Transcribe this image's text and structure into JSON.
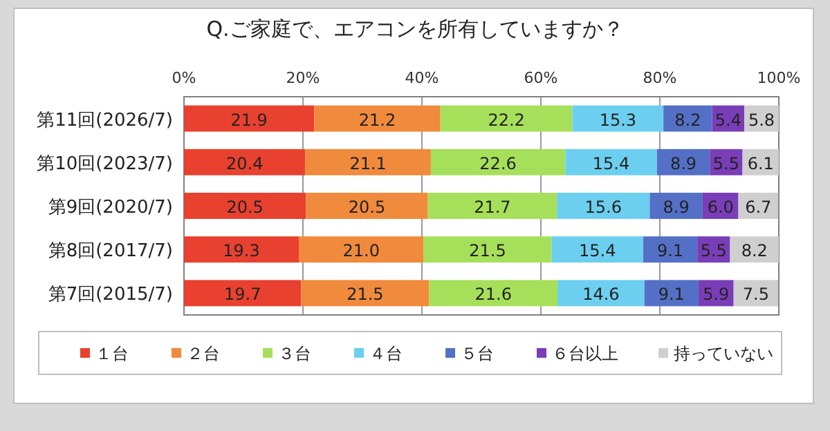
{
  "chart_data": {
    "type": "bar",
    "orientation": "horizontal",
    "stacked": true,
    "title": "Q.ご家庭で、エアコンを所有していますか？",
    "categories": [
      "第11回(2026/7)",
      "第10回(2023/7)",
      "第9回(2020/7)",
      "第8回(2017/7)",
      "第7回(2015/7)"
    ],
    "series": [
      {
        "name": "１台",
        "color": "#e8412f",
        "values": [
          21.9,
          20.4,
          20.5,
          19.3,
          19.7
        ],
        "value_labels": [
          "21.9",
          "20.4",
          "20.5",
          "19.3",
          "19.7"
        ]
      },
      {
        "name": "２台",
        "color": "#f08a3c",
        "values": [
          21.2,
          21.1,
          20.5,
          21.0,
          21.5
        ],
        "value_labels": [
          "21.2",
          "21.1",
          "20.5",
          "21.0",
          "21.5"
        ]
      },
      {
        "name": "３台",
        "color": "#a6e05a",
        "values": [
          22.2,
          22.6,
          21.7,
          21.5,
          21.6
        ],
        "value_labels": [
          "22.2",
          "22.6",
          "21.7",
          "21.5",
          "21.6"
        ]
      },
      {
        "name": "４台",
        "color": "#6ccff0",
        "values": [
          15.3,
          15.4,
          15.6,
          15.4,
          14.6
        ],
        "value_labels": [
          "15.3",
          "15.4",
          "15.6",
          "15.4",
          "14.6"
        ]
      },
      {
        "name": "５台",
        "color": "#5470c6",
        "values": [
          8.2,
          8.9,
          8.9,
          9.1,
          9.1
        ],
        "value_labels": [
          "8.2",
          "8.9",
          "8.9",
          "9.1",
          "9.1"
        ]
      },
      {
        "name": "６台以上",
        "color": "#7a3db8",
        "values": [
          5.4,
          5.5,
          6.0,
          5.5,
          5.9
        ],
        "value_labels": [
          "5.4",
          "5.5",
          "6.0",
          "5.5",
          "5.9"
        ]
      },
      {
        "name": "持っていない",
        "color": "#cfcfcf",
        "values": [
          5.8,
          6.1,
          6.7,
          8.2,
          7.5
        ],
        "value_labels": [
          "5.8",
          "6.1",
          "6.7",
          "8.2",
          "7.5"
        ]
      }
    ],
    "xlim": [
      0,
      100
    ],
    "xticks": [
      {
        "value": 0,
        "label": "0%"
      },
      {
        "value": 20,
        "label": "20%"
      },
      {
        "value": 40,
        "label": "40%"
      },
      {
        "value": 60,
        "label": "60%"
      },
      {
        "value": 80,
        "label": "80%"
      },
      {
        "value": 100,
        "label": "100%"
      }
    ],
    "grid": "x",
    "legend": "bottom"
  }
}
